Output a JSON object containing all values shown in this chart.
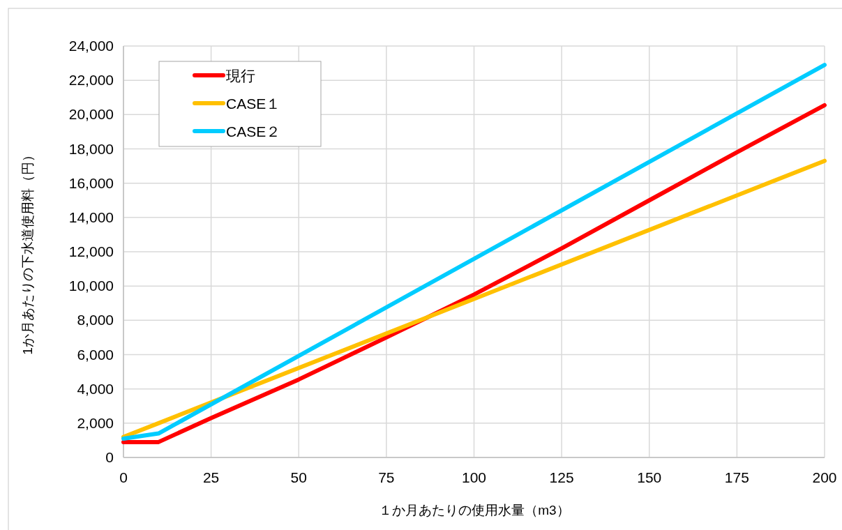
{
  "chart_data": {
    "type": "line",
    "xlabel": "１か月あたりの使用水量（m3）",
    "ylabel": "1か月あたりの下水道使用料（円）",
    "xlim": [
      0,
      200
    ],
    "xticks": [
      0,
      25,
      50,
      75,
      100,
      125,
      150,
      175,
      200
    ],
    "ylim": [
      0,
      24000
    ],
    "yticks": [
      {
        "value": 0,
        "label": "0"
      },
      {
        "value": 2000,
        "label": "2,000"
      },
      {
        "value": 4000,
        "label": "4,000"
      },
      {
        "value": 6000,
        "label": "6,000"
      },
      {
        "value": 8000,
        "label": "8,000"
      },
      {
        "value": 10000,
        "label": "10,000"
      },
      {
        "value": 12000,
        "label": "12,000"
      },
      {
        "value": 14000,
        "label": "14,000"
      },
      {
        "value": 16000,
        "label": "16,000"
      },
      {
        "value": 18000,
        "label": "18,000"
      },
      {
        "value": 20000,
        "label": "20,000"
      },
      {
        "value": 22000,
        "label": "22,000"
      },
      {
        "value": 24000,
        "label": "24,000"
      }
    ],
    "grid": true,
    "legend": "top left",
    "marker": "none",
    "line_style": "solid",
    "series": [
      {
        "name": "現行",
        "color": "#ff0000",
        "x": [
          0,
          10,
          25,
          50,
          75,
          100,
          125,
          150,
          175,
          200
        ],
        "values": [
          900,
          900,
          2300,
          4550,
          7000,
          9500,
          12200,
          15000,
          17800,
          20550
        ]
      },
      {
        "name": "CASE１",
        "color": "#ffc000",
        "x": [
          0,
          10,
          200
        ],
        "values": [
          1200,
          2000,
          17300
        ]
      },
      {
        "name": "CASE２",
        "color": "#00ccff",
        "x": [
          0,
          10,
          200
        ],
        "values": [
          1100,
          1400,
          22900
        ]
      }
    ]
  }
}
